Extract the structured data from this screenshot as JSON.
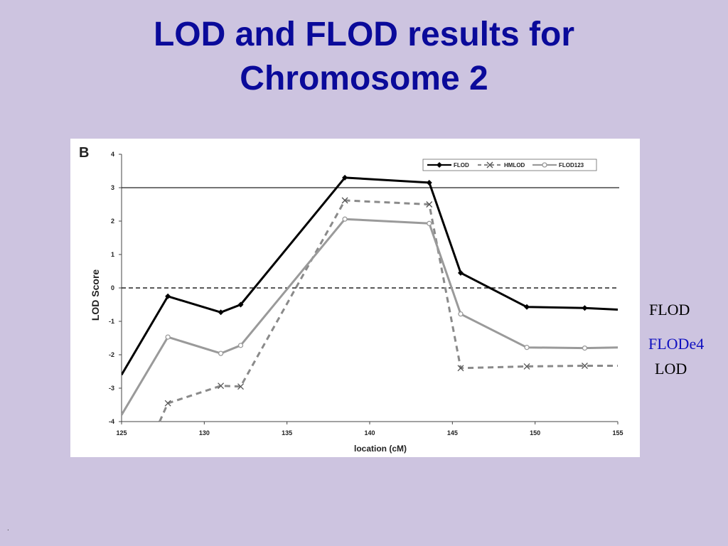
{
  "slide": {
    "title_line1": "LOD and FLOD results for",
    "title_line2": "Chromosome 2",
    "side_labels": [
      "FLOD",
      "FLODe4",
      "LOD"
    ],
    "footer": "."
  },
  "colors": {
    "background": "#cdc4e0",
    "title": "#0a0a9a",
    "flode4_label": "#1010c0",
    "flod_series": "#000000",
    "hmlod_series": "#8a8a8a",
    "flod123_series": "#9a9a9a"
  },
  "chart_data": {
    "type": "line",
    "panel_label": "B",
    "xlabel": "location (cM)",
    "ylabel": "LOD Score",
    "xlim": [
      125,
      155
    ],
    "ylim": [
      -4,
      4
    ],
    "xticks": [
      125,
      130,
      135,
      140,
      145,
      150,
      155
    ],
    "yticks": [
      -4,
      -3,
      -2,
      -1,
      0,
      1,
      2,
      3,
      4
    ],
    "legend_position": "top-right",
    "reference_lines": [
      {
        "y": 3,
        "style": "solid"
      },
      {
        "y": 0,
        "style": "dashed"
      }
    ],
    "series": [
      {
        "name": "FLOD",
        "style": "solid",
        "marker": "diamond",
        "points": [
          [
            125,
            -2.6
          ],
          [
            127.8,
            -0.25
          ],
          [
            131,
            -0.73
          ],
          [
            132.2,
            -0.5
          ],
          [
            138.5,
            3.3
          ],
          [
            143.6,
            3.15
          ],
          [
            145.5,
            0.45
          ],
          [
            149.5,
            -0.57
          ],
          [
            153,
            -0.6
          ],
          [
            155,
            -0.65
          ]
        ]
      },
      {
        "name": "HMLOD",
        "style": "dashed",
        "marker": "x",
        "points": [
          [
            127.3,
            -4.0
          ],
          [
            127.8,
            -3.45
          ],
          [
            131,
            -2.93
          ],
          [
            132.2,
            -2.95
          ],
          [
            138.5,
            2.62
          ],
          [
            143.6,
            2.5
          ],
          [
            145.5,
            -2.4
          ],
          [
            149.5,
            -2.35
          ],
          [
            153,
            -2.33
          ],
          [
            155,
            -2.33
          ]
        ]
      },
      {
        "name": "FLOD123",
        "style": "solid",
        "marker": "circle",
        "points": [
          [
            125,
            -3.8
          ],
          [
            127.8,
            -1.47
          ],
          [
            131,
            -1.96
          ],
          [
            132.2,
            -1.72
          ],
          [
            138.5,
            2.06
          ],
          [
            143.6,
            1.93
          ],
          [
            145.5,
            -0.78
          ],
          [
            149.5,
            -1.78
          ],
          [
            153,
            -1.8
          ],
          [
            155,
            -1.78
          ]
        ]
      }
    ]
  }
}
